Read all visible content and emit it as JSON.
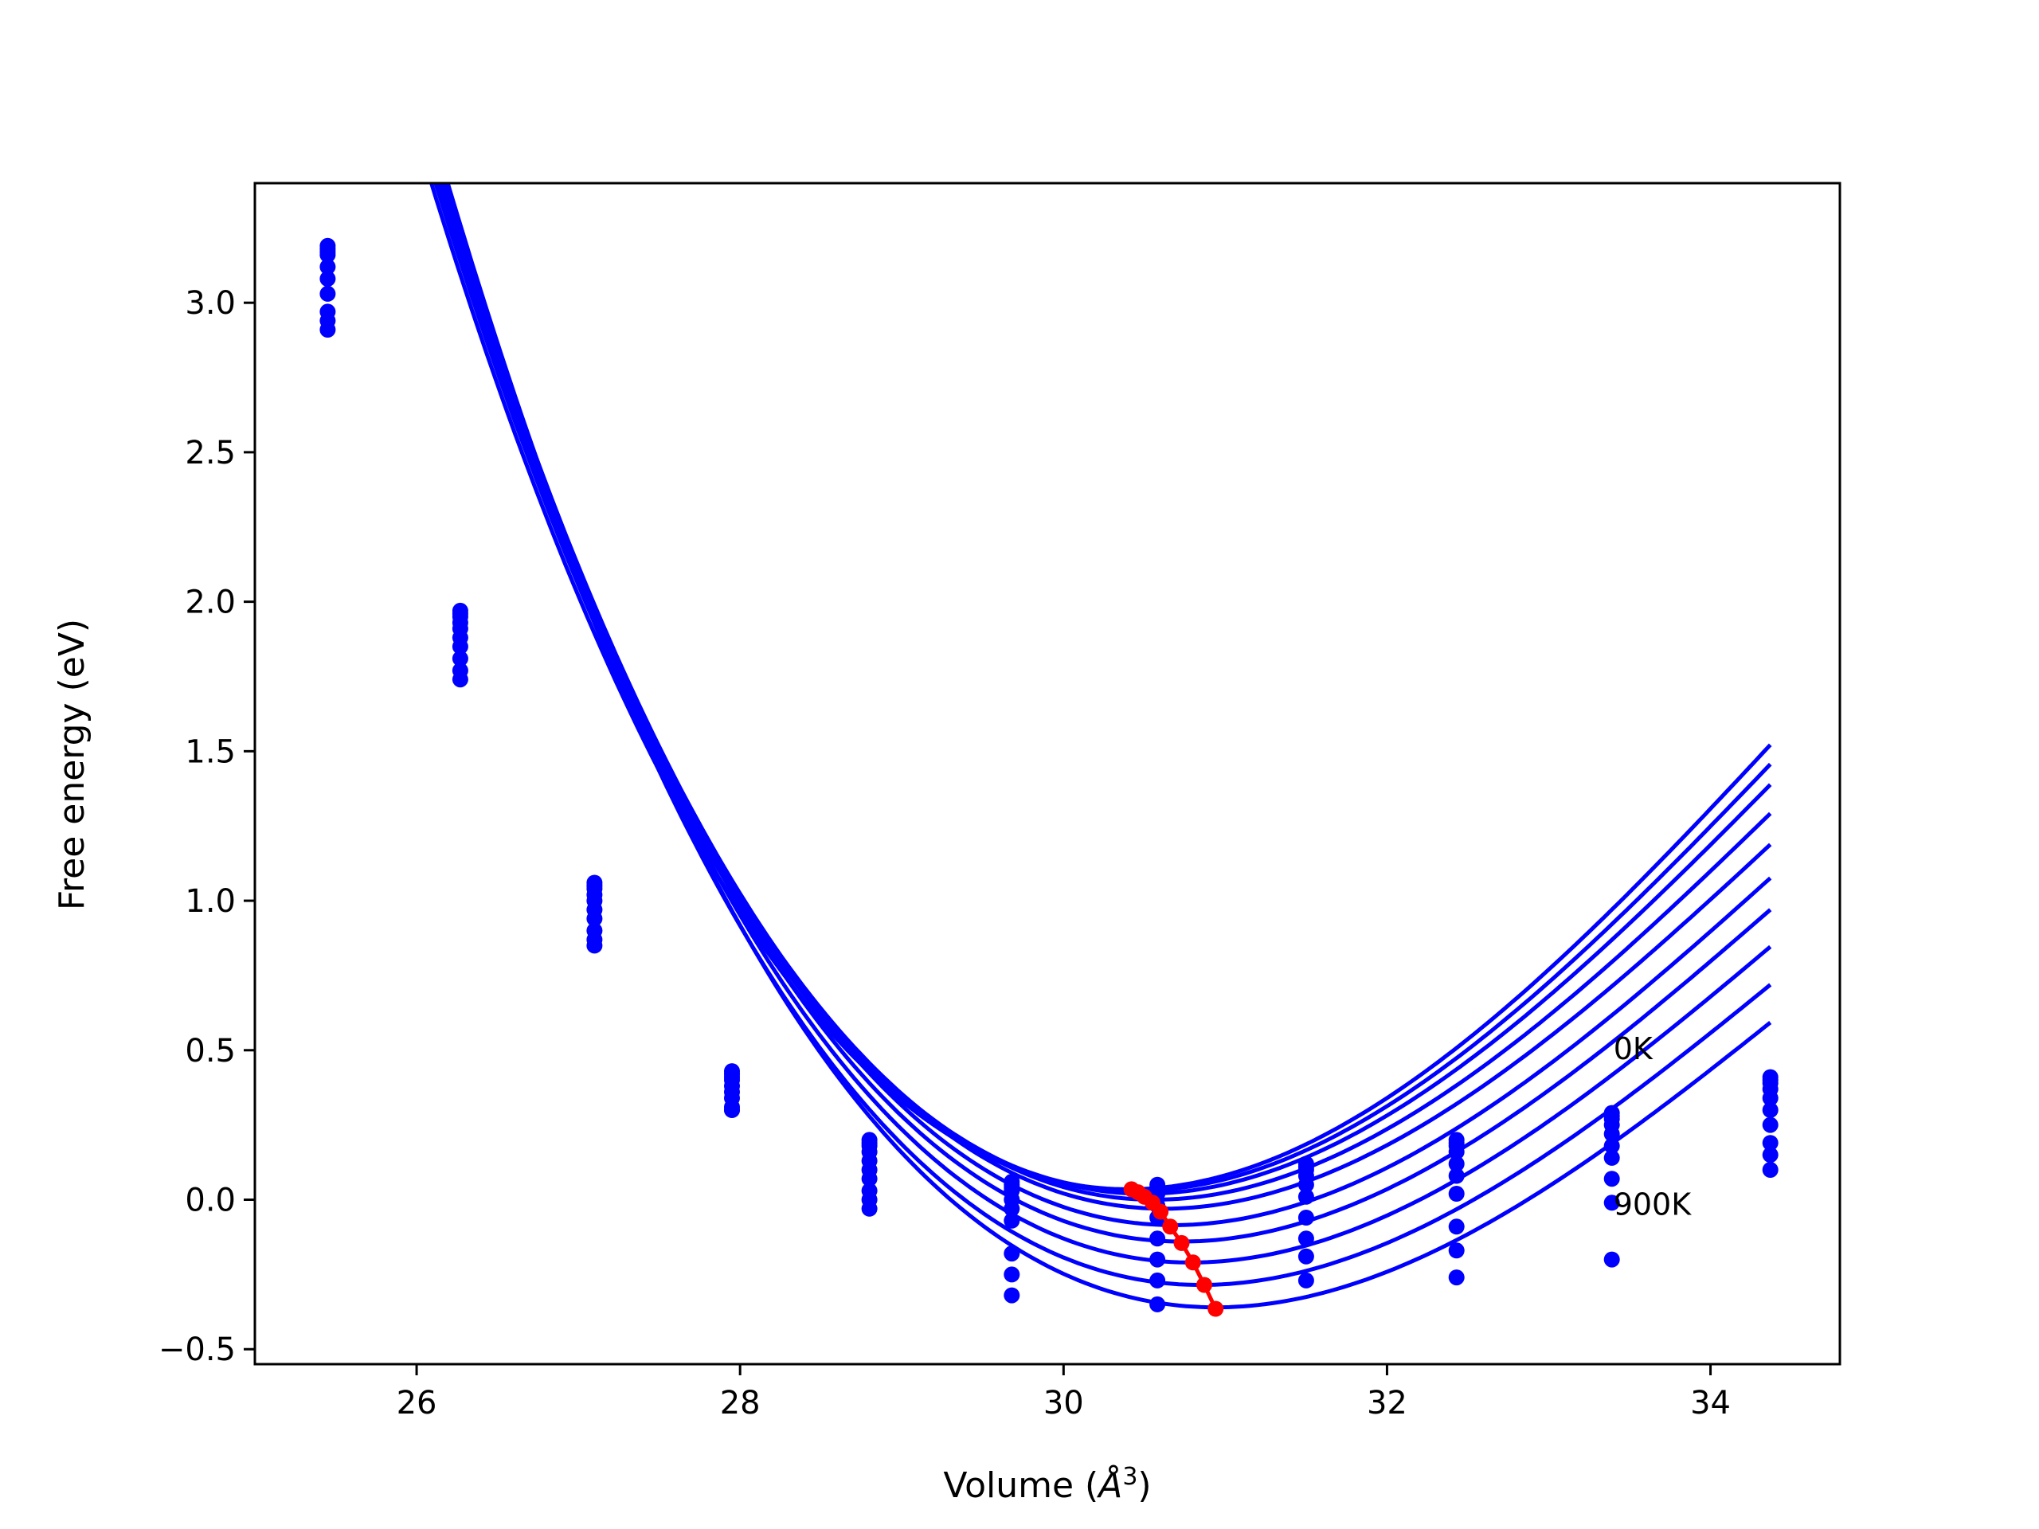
{
  "chart_data": {
    "type": "line",
    "title": "",
    "xlabel_prefix": "Volume (",
    "xlabel_unit": "Å",
    "xlabel_exp": "3",
    "xlabel_suffix": ")",
    "ylabel": "Free energy (eV)",
    "xlim": [
      25.0,
      34.8
    ],
    "ylim": [
      -0.55,
      3.4
    ],
    "xticks": [
      26,
      28,
      30,
      32,
      34
    ],
    "yticks": [
      -0.5,
      0.0,
      0.5,
      1.0,
      1.5,
      2.0,
      2.5,
      3.0
    ],
    "ytick_labels": [
      "−0.5",
      "0.0",
      "0.5",
      "1.0",
      "1.5",
      "2.0",
      "2.5",
      "3.0"
    ],
    "grid": false,
    "annotations": [
      {
        "text": "0K",
        "x": 33.4,
        "y": 0.47
      },
      {
        "text": "900K",
        "x": 33.4,
        "y": -0.05
      }
    ],
    "curve_color": "#0000ff",
    "min_path_color": "#ff0000",
    "sample_volumes": [
      25.45,
      26.27,
      27.1,
      27.95,
      28.8,
      29.68,
      30.58,
      31.5,
      32.43,
      33.39,
      34.37
    ],
    "series": [
      {
        "values": [
          3.19,
          1.97,
          1.06,
          0.43,
          0.2,
          0.06,
          0.05,
          0.12,
          0.2,
          0.29,
          0.41
        ]
      },
      {
        "values": [
          3.18,
          1.96,
          1.05,
          0.42,
          0.19,
          0.05,
          0.04,
          0.11,
          0.19,
          0.28,
          0.4
        ]
      },
      {
        "values": [
          3.17,
          1.95,
          1.04,
          0.41,
          0.18,
          0.04,
          0.03,
          0.1,
          0.18,
          0.27,
          0.39
        ]
      },
      {
        "values": [
          3.16,
          1.93,
          1.02,
          0.4,
          0.16,
          0.03,
          0.02,
          0.08,
          0.16,
          0.25,
          0.37
        ]
      },
      {
        "values": [
          3.12,
          1.91,
          1.0,
          0.38,
          0.13,
          0.0,
          -0.02,
          0.05,
          0.12,
          0.22,
          0.34
        ]
      },
      {
        "values": [
          3.08,
          1.88,
          0.97,
          0.36,
          0.1,
          -0.03,
          -0.06,
          0.01,
          0.08,
          0.18,
          0.3
        ]
      },
      {
        "values": [
          3.03,
          1.85,
          0.94,
          0.34,
          0.07,
          -0.07,
          -0.13,
          -0.06,
          0.02,
          0.14,
          0.25
        ]
      },
      {
        "values": [
          2.97,
          1.81,
          0.9,
          0.31,
          0.03,
          -0.18,
          -0.2,
          -0.13,
          -0.09,
          0.07,
          0.19
        ]
      },
      {
        "values": [
          2.94,
          1.77,
          0.87,
          0.3,
          0.0,
          -0.25,
          -0.27,
          -0.19,
          -0.17,
          -0.01,
          0.15
        ]
      },
      {
        "values": [
          2.91,
          1.74,
          0.85,
          0.3,
          -0.03,
          -0.32,
          -0.35,
          -0.27,
          -0.26,
          -0.2,
          0.1
        ]
      }
    ],
    "fit_curves": [
      {
        "name": "0K",
        "v0": 30.4,
        "e0": 0.035,
        "a": 0.136
      },
      {
        "v0": 30.45,
        "e0": 0.03,
        "a": 0.134
      },
      {
        "v0": 30.5,
        "e0": 0.02,
        "a": 0.132
      },
      {
        "v0": 30.56,
        "e0": 0.0,
        "a": 0.129
      },
      {
        "v0": 30.62,
        "e0": -0.03,
        "a": 0.126
      },
      {
        "v0": 30.68,
        "e0": -0.085,
        "a": 0.124
      },
      {
        "v0": 30.73,
        "e0": -0.14,
        "a": 0.122
      },
      {
        "v0": 30.79,
        "e0": -0.21,
        "a": 0.12
      },
      {
        "v0": 30.85,
        "e0": -0.285,
        "a": 0.118
      },
      {
        "name": "900K",
        "v0": 30.94,
        "e0": -0.36,
        "a": 0.117
      }
    ],
    "min_path": {
      "x": [
        30.42,
        30.46,
        30.5,
        30.55,
        30.6,
        30.66,
        30.73,
        30.8,
        30.87,
        30.94
      ],
      "y": [
        0.035,
        0.025,
        0.01,
        -0.01,
        -0.04,
        -0.09,
        -0.145,
        -0.21,
        -0.285,
        -0.365
      ]
    }
  }
}
